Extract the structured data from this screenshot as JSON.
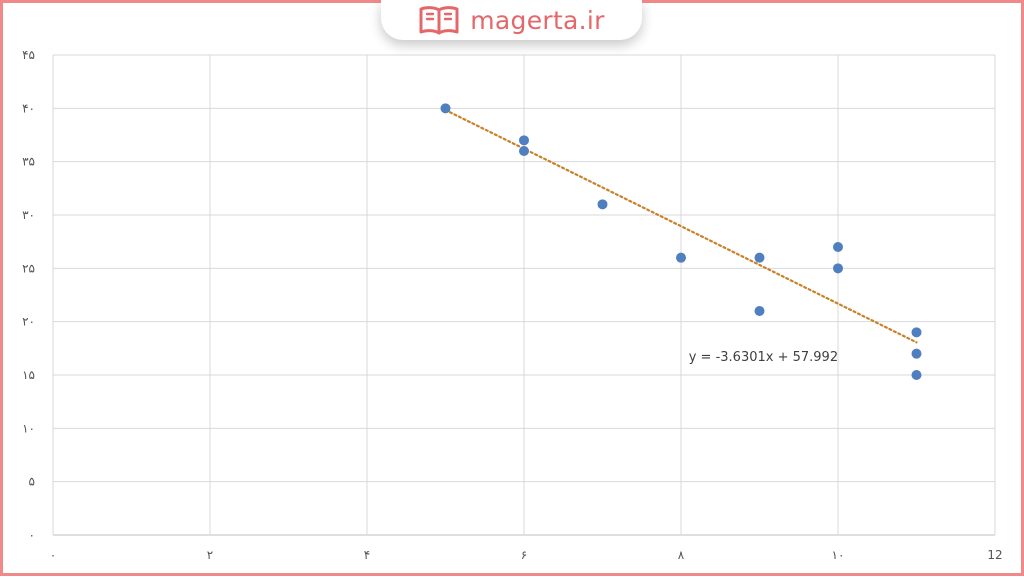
{
  "brand": {
    "name": "magerta.ir",
    "icon": "book-icon",
    "color": "#e4686a",
    "border_color": "#f08a8a"
  },
  "chart_data": {
    "type": "scatter",
    "title": "",
    "xlabel": "",
    "ylabel": "",
    "xlim": [
      0,
      12
    ],
    "ylim": [
      0,
      45
    ],
    "x_ticks": [
      0,
      2,
      4,
      6,
      8,
      10,
      12
    ],
    "x_tick_labels": [
      "۰",
      "۲",
      "۴",
      "۶",
      "۸",
      "۱۰",
      "12"
    ],
    "y_ticks": [
      0,
      5,
      10,
      15,
      20,
      25,
      30,
      35,
      40,
      45
    ],
    "y_tick_labels": [
      "۰",
      "۵",
      "۱۰",
      "۱۵",
      "۲۰",
      "۲۵",
      "۳۰",
      "۳۵",
      "۴۰",
      "۴۵"
    ],
    "grid": true,
    "legend": "none",
    "series": [
      {
        "points": [
          {
            "x": 5,
            "y": 40
          },
          {
            "x": 6,
            "y": 37
          },
          {
            "x": 6,
            "y": 36
          },
          {
            "x": 7,
            "y": 31
          },
          {
            "x": 8,
            "y": 26
          },
          {
            "x": 9,
            "y": 26
          },
          {
            "x": 9,
            "y": 21
          },
          {
            "x": 10,
            "y": 27
          },
          {
            "x": 10,
            "y": 25
          },
          {
            "x": 11,
            "y": 19
          },
          {
            "x": 11,
            "y": 17
          },
          {
            "x": 11,
            "y": 15
          }
        ],
        "color": "#4f7fbf"
      }
    ],
    "trendline": {
      "slope": -3.6301,
      "intercept": 57.992,
      "x_range": [
        5,
        11
      ],
      "color": "#c8822a",
      "style": "dotted",
      "equation_label": "y = -3.6301x + 57.992",
      "label_at": {
        "x": 9.05,
        "y": 16.8
      }
    },
    "colors": {
      "grid": "#d9d9d9",
      "axis": "#bfbfbf"
    }
  }
}
